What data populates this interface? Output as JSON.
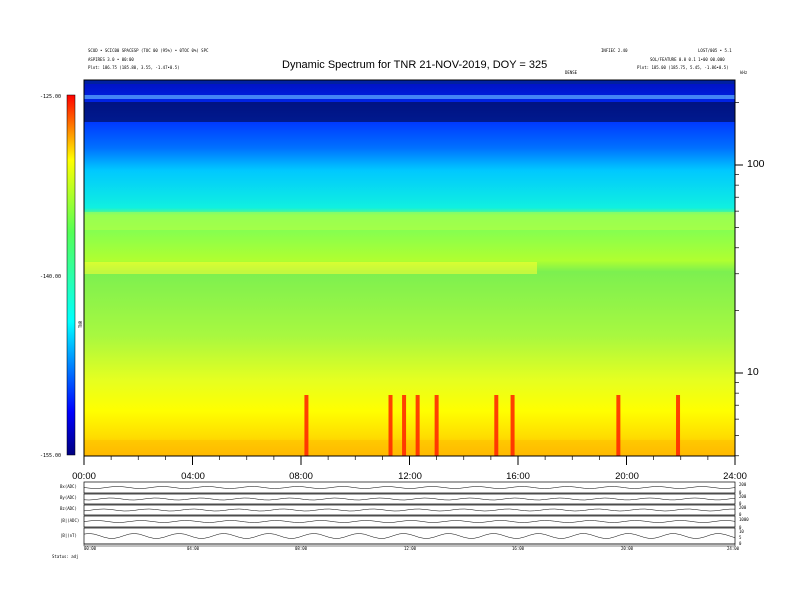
{
  "chart_data": {
    "type": "heatmap",
    "title": "Dynamic Spectrum for TNR 21-NOV-2019, DOY = 325",
    "xlabel": "",
    "ylabel": "",
    "x_ticks": [
      "00:00",
      "04:00",
      "08:00",
      "12:00",
      "16:00",
      "20:00",
      "24:00"
    ],
    "xlim": [
      0,
      24
    ],
    "y_scale": "log",
    "y_ticks": [
      "10",
      "100"
    ],
    "y_unit": "kHz",
    "colorbar": {
      "label": "TNR",
      "range": [
        -155,
        -125
      ],
      "ticks": [
        "-125.00",
        "-140.00",
        "-155.00"
      ],
      "colors": [
        "#000080",
        "#0000ff",
        "#00ffff",
        "#55ff55",
        "#ffff00",
        "#ff0000"
      ]
    },
    "events_hours": [
      8.2,
      11.3,
      11.8,
      12.3,
      13.0,
      15.2,
      15.8,
      19.7,
      21.9
    ],
    "header_left_1": "SCUD • SCIC00 SPACESP (TOC 00 (95%) • 0TOC 0%) SPC",
    "header_left_2": "ASPIRES 3.0 • 00:00",
    "header_left_3": "Plot: 186.75 (185.80, 3.55, -1.47•0.5)",
    "header_right_1": "INFIEC 2.40",
    "header_right_2": "LOST/005 • 5.1",
    "header_right_3": "SOL/FEATURE 0.0 0.1 1•00 00.000",
    "header_right_4": "Plot: 185.00 (185.75, 5.45, -1.86•0.5)",
    "over_label": "DENSE",
    "y_unit_label": "kHz",
    "bottom_panels": [
      {
        "label": "Bx(ADC)",
        "right_ticks": [
          "200",
          "0"
        ]
      },
      {
        "label": "By(ADC)",
        "right_ticks": [
          "200",
          "0"
        ]
      },
      {
        "label": "Bz(ADC)",
        "right_ticks": [
          "200",
          "0"
        ]
      },
      {
        "label": "|B|(ADC)",
        "right_ticks": [
          "1000",
          "0"
        ]
      },
      {
        "label": "|B|(nT)",
        "right_ticks": [
          "10",
          "5",
          "0"
        ]
      }
    ],
    "bottom_x_ticks": [
      "00:00",
      "04:00",
      "08:00",
      "12:00",
      "16:00",
      "20:00",
      "24:00"
    ],
    "footer_label": "Status: adj"
  }
}
